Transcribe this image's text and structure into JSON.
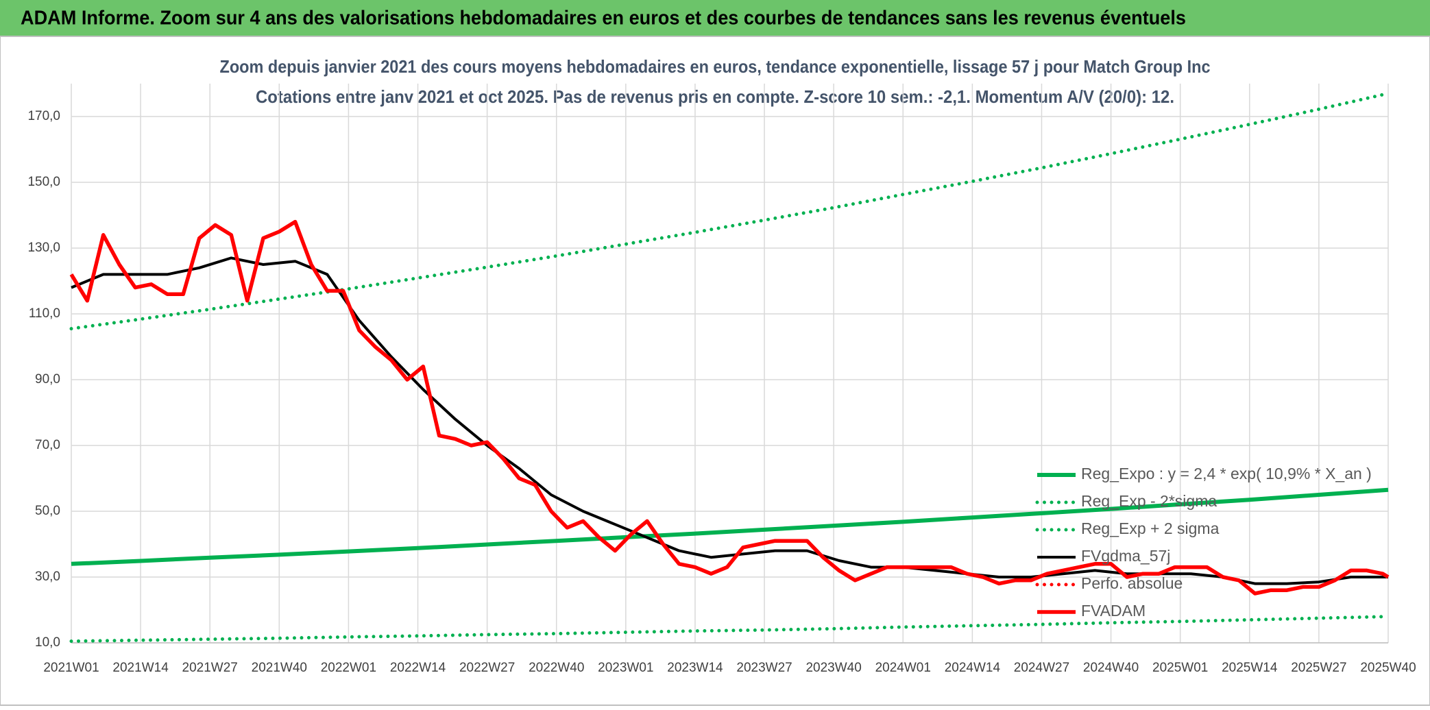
{
  "header": {
    "title": "ADAM Informe. Zoom sur 4 ans des valorisations hebdomadaires en euros et des courbes de tendances sans les revenus éventuels"
  },
  "chart_data": {
    "type": "line",
    "title": "Zoom depuis janvier 2021 des cours moyens hebdomadaires en euros, tendance exponentielle, lissage 57 j pour Match Group Inc",
    "subtitle": "Cotations entre janv 2021 et oct 2025. Pas de revenus pris en compte. Z-score 10 sem.: -2,1. Momentum A/V (20/0): 12.",
    "xlim": [
      0,
      247
    ],
    "xticks": [
      {
        "value": 0,
        "label": "2021W01"
      },
      {
        "value": 13,
        "label": "2021W14"
      },
      {
        "value": 26,
        "label": "2021W27"
      },
      {
        "value": 39,
        "label": "2021W40"
      },
      {
        "value": 52,
        "label": "2022W01"
      },
      {
        "value": 65,
        "label": "2022W14"
      },
      {
        "value": 78,
        "label": "2022W27"
      },
      {
        "value": 91,
        "label": "2022W40"
      },
      {
        "value": 104,
        "label": "2023W01"
      },
      {
        "value": 117,
        "label": "2023W14"
      },
      {
        "value": 130,
        "label": "2023W27"
      },
      {
        "value": 143,
        "label": "2023W40"
      },
      {
        "value": 156,
        "label": "2024W01"
      },
      {
        "value": 169,
        "label": "2024W14"
      },
      {
        "value": 182,
        "label": "2024W27"
      },
      {
        "value": 195,
        "label": "2024W40"
      },
      {
        "value": 208,
        "label": "2025W01"
      },
      {
        "value": 221,
        "label": "2025W14"
      },
      {
        "value": 234,
        "label": "2025W27"
      },
      {
        "value": 247,
        "label": "2025W40"
      }
    ],
    "ylim": [
      10,
      180
    ],
    "yticks": [
      {
        "value": 10,
        "label": "10,0"
      },
      {
        "value": 30,
        "label": "30,0"
      },
      {
        "value": 50,
        "label": "50,0"
      },
      {
        "value": 70,
        "label": "70,0"
      },
      {
        "value": 90,
        "label": "90,0"
      },
      {
        "value": 110,
        "label": "110,0"
      },
      {
        "value": 130,
        "label": "130,0"
      },
      {
        "value": 150,
        "label": "150,0"
      },
      {
        "value": 170,
        "label": "170,0"
      }
    ],
    "grid": true,
    "legend": "lower-right",
    "series": [
      {
        "name": "Reg_Expo : y = 2,4 * exp( 10,9% *  X_an )",
        "color": "#00b050",
        "style": "solid",
        "x": [
          0,
          13,
          26,
          39,
          52,
          65,
          78,
          91,
          104,
          117,
          130,
          143,
          156,
          169,
          182,
          195,
          208,
          221,
          234,
          247
        ],
        "values": [
          34.0,
          34.9,
          35.9,
          36.8,
          37.8,
          38.8,
          39.9,
          41.0,
          42.1,
          43.2,
          44.4,
          45.6,
          46.8,
          48.1,
          49.4,
          50.7,
          52.1,
          53.5,
          55.0,
          56.5
        ]
      },
      {
        "name": "Reg_Exp - 2*sigma",
        "color": "#00b050",
        "style": "dotted",
        "x": [
          0,
          13,
          26,
          39,
          52,
          65,
          78,
          91,
          104,
          117,
          130,
          143,
          156,
          169,
          182,
          195,
          208,
          221,
          234,
          247
        ],
        "values": [
          10.5,
          10.8,
          11.1,
          11.4,
          11.8,
          12.1,
          12.5,
          12.8,
          13.2,
          13.6,
          13.9,
          14.3,
          14.8,
          15.2,
          15.6,
          16.1,
          16.5,
          17.0,
          17.5,
          18.0
        ]
      },
      {
        "name": "Reg_Exp + 2 sigma",
        "color": "#00b050",
        "style": "dotted",
        "x": [
          0,
          13,
          26,
          39,
          52,
          65,
          78,
          91,
          104,
          117,
          130,
          143,
          156,
          169,
          182,
          195,
          208,
          221,
          234,
          247
        ],
        "values": [
          105.5,
          108.4,
          111.4,
          114.5,
          117.6,
          120.9,
          124.2,
          127.6,
          131.2,
          134.8,
          138.5,
          142.3,
          146.3,
          150.3,
          154.4,
          158.7,
          163.1,
          167.6,
          172.2,
          177.0
        ]
      },
      {
        "name": "FVgdma_57j",
        "color": "#000000",
        "style": "solid",
        "x": [
          0,
          6,
          12,
          18,
          24,
          30,
          36,
          42,
          48,
          54,
          60,
          66,
          72,
          78,
          84,
          90,
          96,
          102,
          108,
          114,
          120,
          126,
          132,
          138,
          144,
          150,
          156,
          162,
          168,
          174,
          180,
          186,
          192,
          198,
          204,
          210,
          216,
          222,
          228,
          234,
          240,
          246,
          247
        ],
        "values": [
          118,
          122,
          122,
          122,
          124,
          127,
          125,
          126,
          122,
          108,
          97,
          87,
          78,
          70,
          63,
          55,
          50,
          46,
          42,
          38,
          36,
          37,
          38,
          38,
          35,
          33,
          33,
          32,
          31,
          30,
          30,
          31,
          32,
          31,
          31,
          31,
          30,
          28,
          28,
          28.5,
          30,
          30,
          30
        ]
      },
      {
        "name": "Perfo. absolue",
        "color": "#ff0000",
        "style": "dotted",
        "x": [],
        "values": []
      },
      {
        "name": "FVADAM",
        "color": "#ff0000",
        "style": "thick",
        "x": [
          0,
          3,
          6,
          9,
          12,
          15,
          18,
          21,
          24,
          27,
          30,
          33,
          36,
          39,
          42,
          45,
          48,
          51,
          54,
          57,
          60,
          63,
          66,
          69,
          72,
          75,
          78,
          81,
          84,
          87,
          90,
          93,
          96,
          99,
          102,
          105,
          108,
          111,
          114,
          117,
          120,
          123,
          126,
          129,
          132,
          135,
          138,
          141,
          144,
          147,
          150,
          153,
          156,
          159,
          162,
          165,
          168,
          171,
          174,
          177,
          180,
          183,
          186,
          189,
          192,
          195,
          198,
          201,
          204,
          207,
          210,
          213,
          216,
          219,
          222,
          225,
          228,
          231,
          234,
          237,
          240,
          243,
          246,
          247
        ],
        "values": [
          122,
          114,
          134,
          125,
          118,
          119,
          116,
          116,
          133,
          137,
          134,
          114,
          133,
          135,
          138,
          125,
          117,
          117,
          105,
          100,
          96,
          90,
          94,
          73,
          72,
          70,
          71,
          66,
          60,
          58,
          50,
          45,
          47,
          42,
          38,
          43,
          47,
          40,
          34,
          33,
          31,
          33,
          39,
          40,
          41,
          41,
          41,
          36,
          32,
          29,
          31,
          33,
          33,
          33,
          33,
          33,
          31,
          30,
          28,
          29,
          29,
          31,
          32,
          33,
          34,
          34,
          30,
          31,
          31,
          33,
          33,
          33,
          30,
          29,
          25,
          26,
          26,
          27,
          27,
          29,
          32,
          32,
          31,
          30
        ]
      }
    ]
  }
}
